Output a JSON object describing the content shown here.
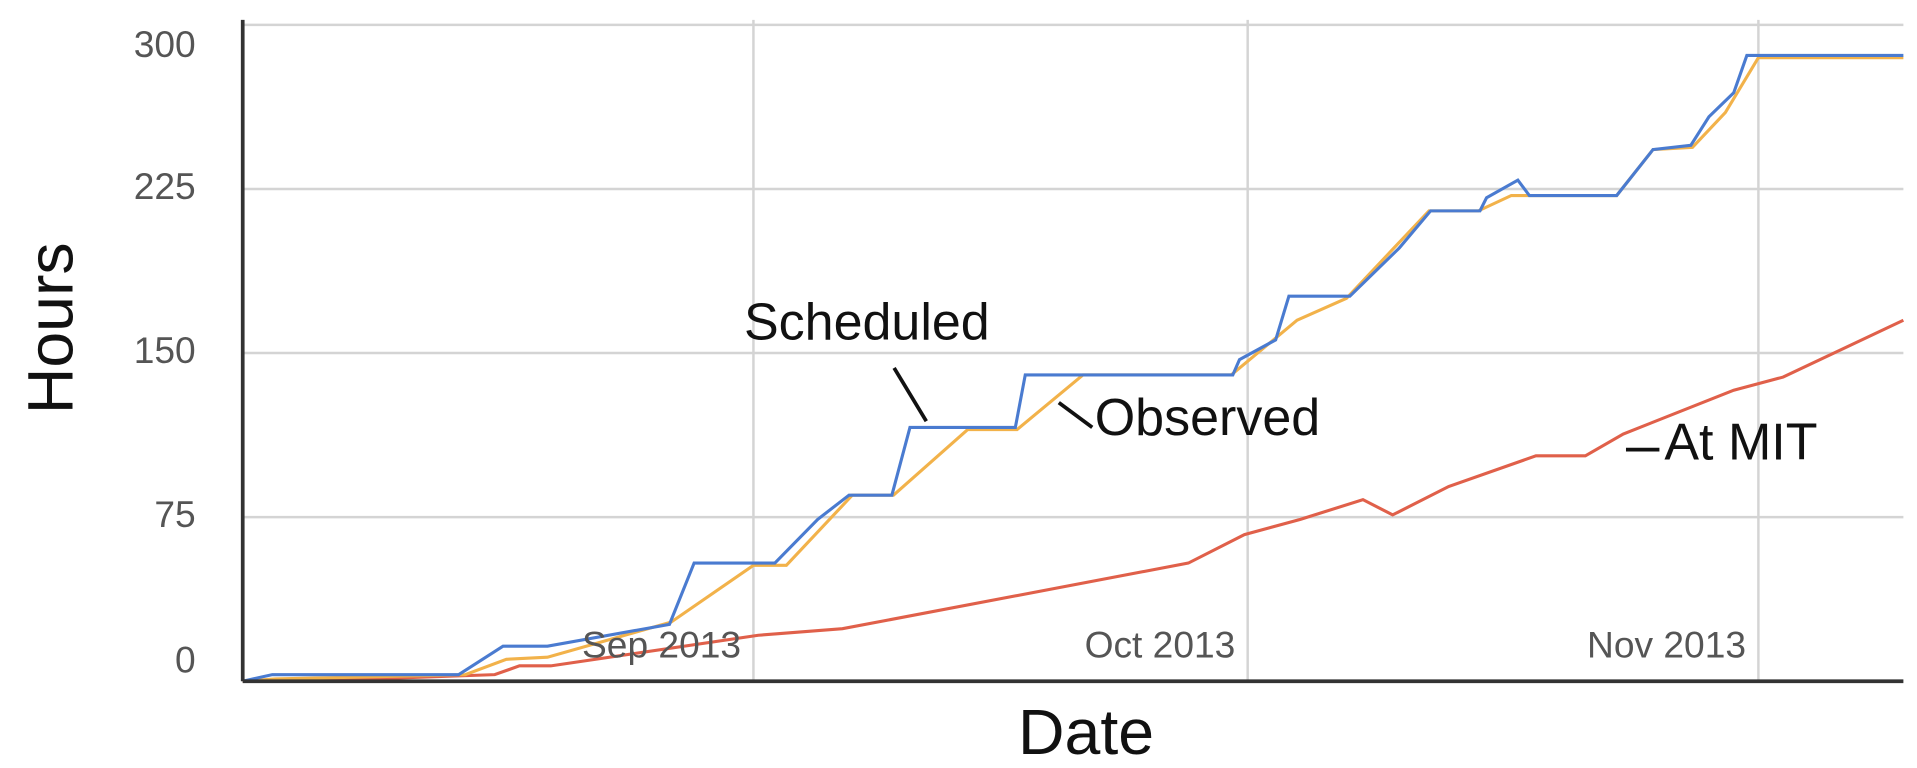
{
  "chart_data": {
    "type": "line",
    "x_label": "Date",
    "y_label": "Hours",
    "xlim": [
      0,
      100.8
    ],
    "ylim": [
      0,
      300
    ],
    "xticks": [
      {
        "value": 31,
        "label": "Sep 2013"
      },
      {
        "value": 61,
        "label": "Oct 2013"
      },
      {
        "value": 92,
        "label": "Nov 2013"
      }
    ],
    "yticks": [
      0,
      75,
      150,
      225,
      300
    ],
    "grid": true,
    "annotations": [
      "Scheduled",
      "Observed",
      "At MIT"
    ],
    "series": [
      {
        "name": "Scheduled",
        "color": "#4a7bd0",
        "x": [
          0,
          1.8,
          13.1,
          15.8,
          18.5,
          25.9,
          27.4,
          32.3,
          34.9,
          36.8,
          39.4,
          40.5,
          46.9,
          47.5,
          60.1,
          60.5,
          62.7,
          63.5,
          67.2,
          70.2,
          72.1,
          75.1,
          75.5,
          77.4,
          78.1,
          83.4,
          85.6,
          87.9,
          89.0,
          90.5,
          91.3,
          100.8
        ],
        "values": [
          0,
          3,
          3,
          16,
          16,
          26,
          54,
          54,
          74,
          85,
          85,
          116,
          116,
          140,
          140,
          147,
          156,
          176,
          176,
          198,
          215,
          215,
          221,
          229,
          222,
          222,
          243,
          245,
          258,
          269,
          286,
          286
        ]
      },
      {
        "name": "Observed",
        "color": "#f2b24a",
        "x": [
          0,
          2,
          13.5,
          16,
          18.5,
          26,
          31,
          33,
          37,
          39.5,
          44,
          47,
          51,
          60,
          64,
          67,
          72,
          75,
          77,
          83.4,
          85.6,
          88,
          90,
          92,
          100.8
        ],
        "values": [
          0,
          1,
          3,
          10,
          11,
          27,
          53,
          53,
          85,
          85,
          115,
          115,
          140,
          140,
          165,
          175,
          215,
          215,
          222,
          222,
          243,
          244,
          260,
          285,
          285
        ]
      },
      {
        "name": "At MIT",
        "color": "#e0604a",
        "x": [
          0,
          7.8,
          15.3,
          16.8,
          18.7,
          31.3,
          36.4,
          57.4,
          60.8,
          64.2,
          68,
          69.8,
          73.2,
          78.5,
          81.5,
          83.8,
          90.5,
          93.5,
          100.8
        ],
        "values": [
          0,
          1,
          3,
          7,
          7,
          21,
          24,
          54,
          67,
          74,
          83,
          76,
          89,
          103,
          103,
          113,
          133,
          139,
          165
        ]
      }
    ]
  }
}
